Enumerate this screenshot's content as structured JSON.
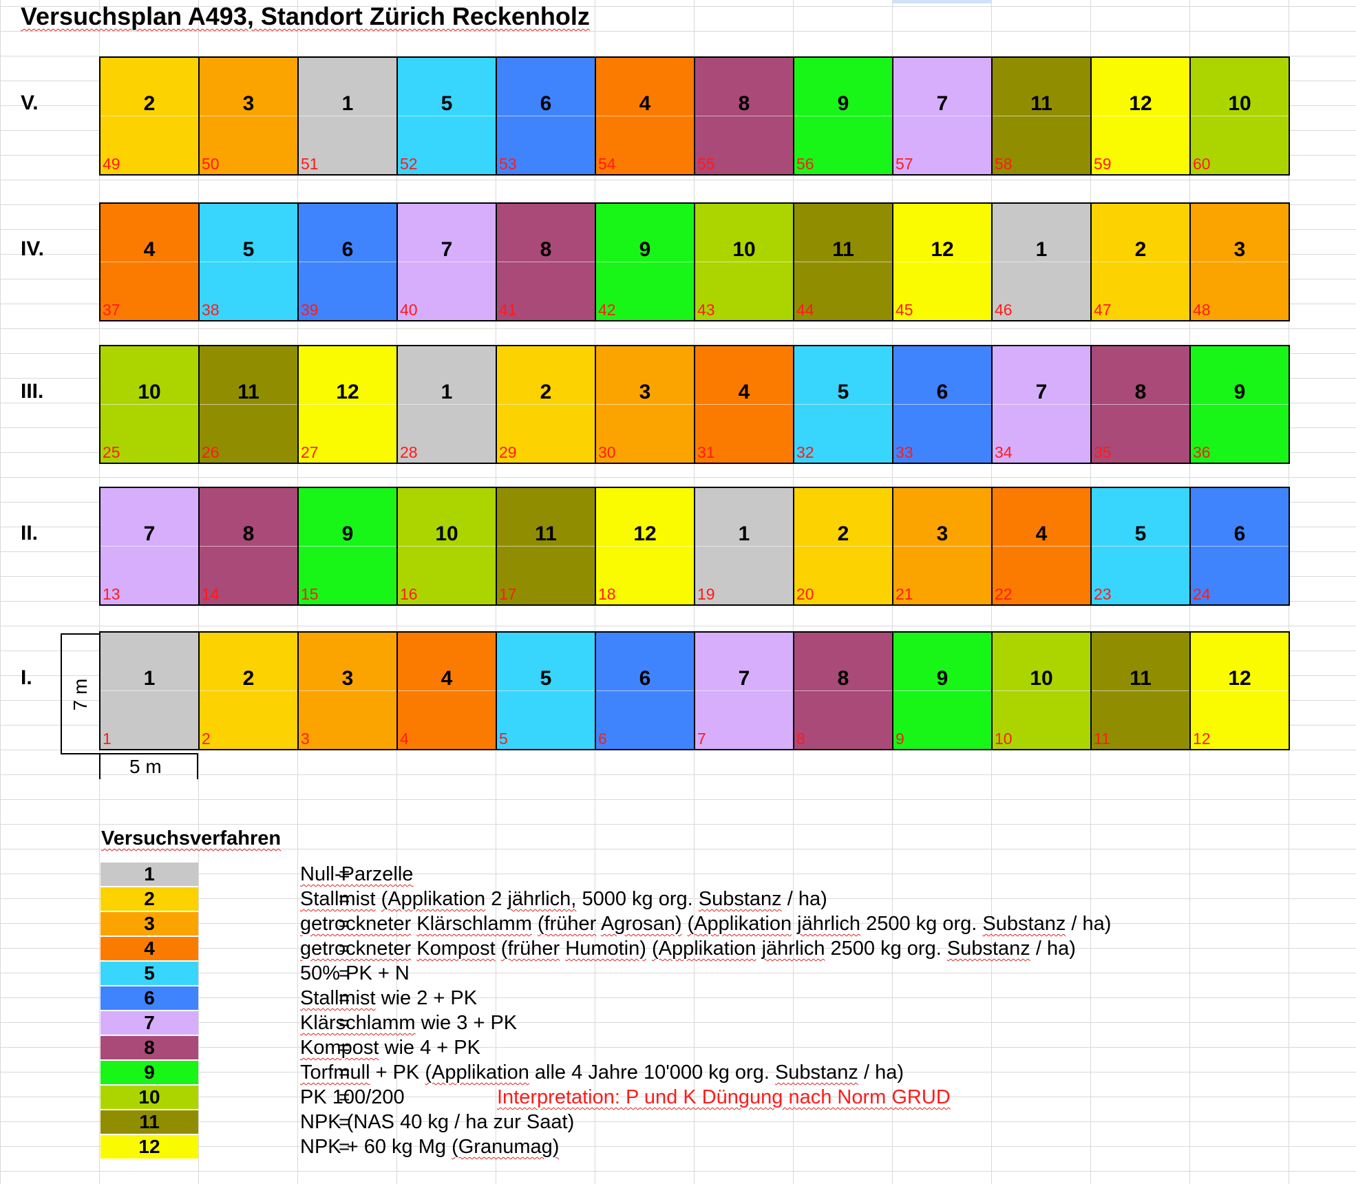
{
  "title": "Versuchsplan A493, Standort Zürich Reckenholz",
  "colors": {
    "1": "#c8c8c8",
    "2": "#fcd200",
    "3": "#fba400",
    "4": "#fb7b00",
    "5": "#38d5fd",
    "6": "#3f84fd",
    "7": "#d6aefc",
    "8": "#a94a78",
    "9": "#18f618",
    "10": "#acd500",
    "11": "#908e00",
    "12": "#fbfb00"
  },
  "rows": [
    {
      "label": "V.",
      "treatments": [
        "2",
        "3",
        "1",
        "5",
        "6",
        "4",
        "8",
        "9",
        "7",
        "11",
        "12",
        "10"
      ],
      "plots": [
        "49",
        "50",
        "51",
        "52",
        "53",
        "54",
        "55",
        "56",
        "57",
        "58",
        "59",
        "60"
      ]
    },
    {
      "label": "IV.",
      "treatments": [
        "4",
        "5",
        "6",
        "7",
        "8",
        "9",
        "10",
        "11",
        "12",
        "1",
        "2",
        "3"
      ],
      "plots": [
        "37",
        "38",
        "39",
        "40",
        "41",
        "42",
        "43",
        "44",
        "45",
        "46",
        "47",
        "48"
      ]
    },
    {
      "label": "III.",
      "treatments": [
        "10",
        "11",
        "12",
        "1",
        "2",
        "3",
        "4",
        "5",
        "6",
        "7",
        "8",
        "9"
      ],
      "plots": [
        "25",
        "26",
        "27",
        "28",
        "29",
        "30",
        "31",
        "32",
        "33",
        "34",
        "35",
        "36"
      ]
    },
    {
      "label": "II.",
      "treatments": [
        "7",
        "8",
        "9",
        "10",
        "11",
        "12",
        "1",
        "2",
        "3",
        "4",
        "5",
        "6"
      ],
      "plots": [
        "13",
        "14",
        "15",
        "16",
        "17",
        "18",
        "19",
        "20",
        "21",
        "22",
        "23",
        "24"
      ]
    },
    {
      "label": "I.",
      "treatments": [
        "1",
        "2",
        "3",
        "4",
        "5",
        "6",
        "7",
        "8",
        "9",
        "10",
        "11",
        "12"
      ],
      "plots": [
        "1",
        "2",
        "3",
        "4",
        "5",
        "6",
        "7",
        "8",
        "9",
        "10",
        "11",
        "12"
      ]
    }
  ],
  "dimensions": {
    "height": "7 m",
    "width": "5 m"
  },
  "legend": {
    "title": "Versuchsverfahren",
    "equals": "=",
    "items": [
      {
        "code": "1",
        "desc": "Null-Parzelle"
      },
      {
        "code": "2",
        "desc": "Stallmist (Applikation 2 jährlich, 5000 kg org. Substanz / ha)"
      },
      {
        "code": "3",
        "desc": "getrockneter Klärschlamm (früher Agrosan) (Applikation jährlich 2500 kg org. Substanz / ha)"
      },
      {
        "code": "4",
        "desc": "getrockneter Kompost (früher Humotin) (Applikation jährlich 2500 kg org. Substanz / ha)"
      },
      {
        "code": "5",
        "desc": "50% PK + N"
      },
      {
        "code": "6",
        "desc": "Stallmist wie 2 + PK"
      },
      {
        "code": "7",
        "desc": "Klärschlamm wie 3 + PK"
      },
      {
        "code": "8",
        "desc": "Kompost wie 4 + PK"
      },
      {
        "code": "9",
        "desc": "Torfmull + PK (Applikation alle 4 Jahre 10'000 kg org. Substanz / ha)"
      },
      {
        "code": "10",
        "desc": "PK 100/200",
        "note": "Interpretation: P und K Düngung nach Norm GRUD"
      },
      {
        "code": "11",
        "desc": "NPK (NAS 40 kg / ha zur Saat)"
      },
      {
        "code": "12",
        "desc": "NPK + 60 kg Mg (Granumag)"
      }
    ]
  }
}
